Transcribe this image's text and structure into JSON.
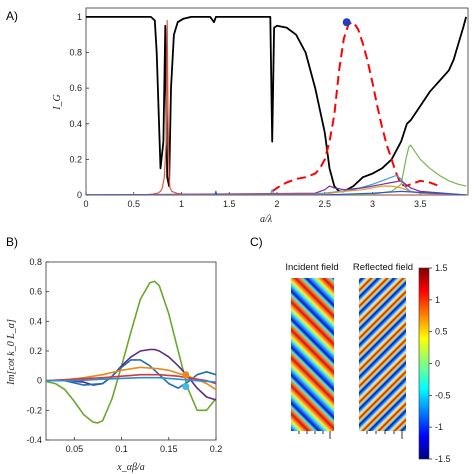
{
  "figure": {
    "panels": {
      "a": "A)",
      "b": "B)",
      "c": "C)"
    }
  },
  "chart_data": [
    {
      "type": "line",
      "panel": "A)",
      "xlabel": "a/λ",
      "ylabel": "I_G",
      "xlim": [
        0,
        4
      ],
      "ylim": [
        0,
        1.05
      ],
      "xticks": [
        "0",
        "0.5",
        "1",
        "1.5",
        "2",
        "2.5",
        "3",
        "3.5"
      ],
      "yticks": [
        "0",
        "0.2",
        "0.4",
        "0.6",
        "0.8",
        "1"
      ],
      "marker": {
        "x": 2.73,
        "y": 0.97,
        "color": "#1f3fbf"
      },
      "series": [
        {
          "color": "#000000",
          "style": "solid",
          "x": [
            0,
            0.68,
            0.72,
            0.74,
            0.78,
            0.81,
            0.83,
            0.85,
            0.87,
            0.89,
            0.92,
            0.96,
            1.02,
            1.1,
            1.3,
            1.34,
            1.36,
            1.5,
            1.8,
            1.93,
            1.95,
            1.97,
            2.0,
            2.1,
            2.2,
            2.3,
            2.4,
            2.5,
            2.55,
            2.6,
            2.65,
            2.7,
            2.8,
            2.9,
            3.0,
            3.1,
            3.2,
            3.3,
            3.36,
            3.4,
            3.5,
            3.6,
            3.7,
            3.8,
            3.85,
            3.9,
            3.95,
            3.98
          ],
          "y": [
            1,
            1,
            0.98,
            0.8,
            0.15,
            0.3,
            0.95,
            0.1,
            0.05,
            0.6,
            0.9,
            0.97,
            0.99,
            1,
            1,
            0.97,
            1,
            1,
            1,
            1,
            0.3,
            0.94,
            0.95,
            0.94,
            0.9,
            0.8,
            0.6,
            0.35,
            0.15,
            0.05,
            0.02,
            0.02,
            0.05,
            0.1,
            0.12,
            0.15,
            0.2,
            0.3,
            0.4,
            0.42,
            0.5,
            0.58,
            0.64,
            0.7,
            0.76,
            0.85,
            0.94,
            1
          ]
        },
        {
          "color": "#ff0000",
          "style": "dashed",
          "x": [
            1.95,
            2.0,
            2.1,
            2.2,
            2.3,
            2.4,
            2.45,
            2.5,
            2.55,
            2.6,
            2.65,
            2.7,
            2.75,
            2.8,
            2.85,
            2.9,
            2.95,
            3.0,
            3.05,
            3.1,
            3.15,
            3.2,
            3.25,
            3.3,
            3.35,
            3.4,
            3.5,
            3.6,
            3.7
          ],
          "y": [
            0.02,
            0.04,
            0.07,
            0.09,
            0.1,
            0.12,
            0.15,
            0.2,
            0.3,
            0.45,
            0.7,
            0.88,
            0.96,
            0.97,
            0.93,
            0.85,
            0.75,
            0.63,
            0.5,
            0.38,
            0.28,
            0.2,
            0.12,
            0.06,
            0.05,
            0.06,
            0.08,
            0.07,
            0.05
          ]
        },
        {
          "color": "#e2583e",
          "style": "solid",
          "x": [
            0,
            0.6,
            0.7,
            0.75,
            0.78,
            0.8,
            0.82,
            0.84,
            0.85,
            0.86,
            0.87,
            0.88,
            0.9,
            0.95,
            1.0,
            1.2,
            1.8,
            2.5,
            3.0,
            3.3,
            3.5,
            4.0
          ],
          "y": [
            0,
            0,
            0.005,
            0.01,
            0.02,
            0.04,
            0.1,
            0.3,
            0.98,
            0.4,
            0.1,
            0.04,
            0.02,
            0.01,
            0.005,
            0,
            0,
            0,
            0,
            0,
            0,
            0
          ]
        },
        {
          "color": "#7db54a",
          "style": "solid",
          "x": [
            0,
            2.5,
            3.0,
            3.2,
            3.3,
            3.35,
            3.38,
            3.4,
            3.45,
            3.5,
            3.6,
            3.7,
            3.8,
            3.9,
            3.98
          ],
          "y": [
            0,
            0,
            0.005,
            0.02,
            0.06,
            0.2,
            0.27,
            0.28,
            0.24,
            0.2,
            0.15,
            0.11,
            0.08,
            0.06,
            0.05
          ]
        },
        {
          "color": "#3aa0d8",
          "style": "solid",
          "x": [
            0,
            1.93,
            1.95,
            1.97,
            2.2,
            2.5,
            2.8,
            3.0,
            3.1,
            3.2,
            3.25,
            3.3,
            3.35,
            3.4,
            3.5,
            3.98
          ],
          "y": [
            0,
            0,
            0.03,
            0,
            0.005,
            0.01,
            0.03,
            0.06,
            0.08,
            0.1,
            0.11,
            0.09,
            0.04,
            0.02,
            0.01,
            0
          ]
        },
        {
          "color": "#7a2e9a",
          "style": "solid",
          "x": [
            0,
            2.4,
            2.5,
            2.55,
            2.6,
            2.7,
            2.9,
            3.1,
            3.2,
            3.3,
            3.4,
            3.5,
            3.98
          ],
          "y": [
            0,
            0.01,
            0.03,
            0.05,
            0.04,
            0.03,
            0.04,
            0.06,
            0.07,
            0.08,
            0.04,
            0.02,
            0
          ]
        },
        {
          "color": "#e39a2e",
          "style": "solid",
          "x": [
            0,
            2.5,
            2.7,
            2.9,
            3.0,
            3.1,
            3.2,
            3.3,
            3.4,
            3.5,
            3.98
          ],
          "y": [
            0,
            0.005,
            0.02,
            0.03,
            0.04,
            0.05,
            0.05,
            0.04,
            0.02,
            0.01,
            0
          ]
        },
        {
          "color": "#2c55d6",
          "style": "solid",
          "x": [
            0,
            1.35,
            1.36,
            1.37,
            2.5,
            3.0,
            3.3,
            3.98
          ],
          "y": [
            0,
            0,
            0.02,
            0,
            0,
            0.01,
            0.02,
            0
          ]
        }
      ]
    },
    {
      "type": "line",
      "panel": "B)",
      "xlabel": "x_αβ/a",
      "ylabel": "Im[cot k_0 L_α]",
      "xlim": [
        0.02,
        0.2
      ],
      "ylim": [
        -0.4,
        0.8
      ],
      "xticks": [
        "0.05",
        "0.1",
        "0.15",
        "0.2"
      ],
      "yticks": [
        "-0.4",
        "-0.2",
        "0",
        "0.2",
        "0.4",
        "0.6",
        "0.8"
      ],
      "series": [
        {
          "color": "#6aa82c",
          "x": [
            0.02,
            0.03,
            0.04,
            0.05,
            0.06,
            0.07,
            0.075,
            0.08,
            0.09,
            0.1,
            0.11,
            0.12,
            0.13,
            0.135,
            0.14,
            0.15,
            0.16,
            0.17,
            0.18,
            0.19,
            0.2
          ],
          "y": [
            -0.005,
            -0.02,
            -0.06,
            -0.14,
            -0.23,
            -0.28,
            -0.285,
            -0.27,
            -0.12,
            0.1,
            0.33,
            0.55,
            0.66,
            0.67,
            0.64,
            0.45,
            0.2,
            -0.05,
            -0.2,
            -0.2,
            -0.12
          ]
        },
        {
          "color": "#5a2a8a",
          "x": [
            0.02,
            0.04,
            0.06,
            0.07,
            0.08,
            0.09,
            0.1,
            0.11,
            0.12,
            0.13,
            0.135,
            0.14,
            0.15,
            0.16,
            0.17,
            0.18,
            0.19,
            0.2
          ],
          "y": [
            0,
            0,
            -0.01,
            -0.03,
            -0.02,
            0.03,
            0.1,
            0.16,
            0.2,
            0.21,
            0.21,
            0.2,
            0.16,
            0.1,
            0.03,
            -0.05,
            -0.11,
            -0.13
          ]
        },
        {
          "color": "#1f6fb5",
          "x": [
            0.02,
            0.04,
            0.06,
            0.08,
            0.09,
            0.1,
            0.11,
            0.12,
            0.13,
            0.14,
            0.15,
            0.16,
            0.17,
            0.18,
            0.19,
            0.2
          ],
          "y": [
            0,
            0,
            -0.03,
            -0.02,
            0.03,
            0.09,
            0.14,
            0.14,
            0.1,
            0.04,
            -0.02,
            -0.05,
            -0.01,
            0.04,
            0.06,
            0.04
          ]
        },
        {
          "color": "#e88a1c",
          "x": [
            0.02,
            0.04,
            0.06,
            0.08,
            0.1,
            0.12,
            0.14,
            0.15,
            0.16,
            0.17,
            0.18,
            0.19,
            0.2
          ],
          "y": [
            0,
            0.005,
            0.02,
            0.04,
            0.07,
            0.09,
            0.08,
            0.07,
            0.05,
            0.03,
            0.01,
            -0.02,
            -0.06
          ]
        },
        {
          "color": "#d43a3a",
          "x": [
            0.02,
            0.05,
            0.08,
            0.1,
            0.12,
            0.14,
            0.16,
            0.17,
            0.18,
            0.19,
            0.2
          ],
          "y": [
            0,
            0.01,
            0.02,
            0.03,
            0.04,
            0.04,
            0.03,
            0.02,
            0.01,
            0,
            -0.02
          ]
        },
        {
          "color": "#2b8fd3",
          "x": [
            0.02,
            0.05,
            0.08,
            0.1,
            0.12,
            0.14,
            0.16,
            0.18,
            0.2
          ],
          "y": [
            0,
            0,
            0.01,
            0.015,
            0.02,
            0.02,
            0.01,
            0,
            -0.01
          ]
        }
      ],
      "markers": [
        {
          "x": 0.168,
          "y": 0.04,
          "color": "#e88a1c"
        },
        {
          "x": 0.168,
          "y": -0.04,
          "color": "#49b8e0"
        }
      ]
    },
    {
      "type": "heatmap",
      "panel": "C)",
      "titles": [
        "Incident field",
        "Reflected field"
      ],
      "colorbar_ticks": [
        "1.5",
        "1",
        "0.5",
        "0",
        "-0.5",
        "-1",
        "-1.5"
      ],
      "range": [
        -1.5,
        1.5
      ]
    }
  ]
}
